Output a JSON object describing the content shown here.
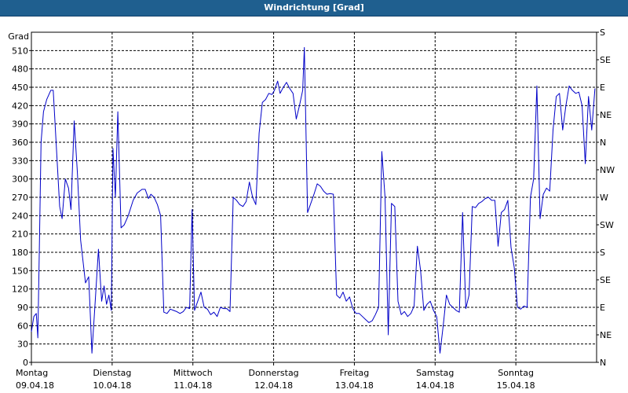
{
  "window": {
    "title": "Windrichtung [Grad]"
  },
  "chart_data": {
    "type": "line",
    "title": "Windrichtung [Grad]",
    "ylabel": "Grad",
    "ylim": [
      0,
      540
    ],
    "yticks": [
      0,
      30,
      60,
      90,
      120,
      150,
      180,
      210,
      240,
      270,
      300,
      330,
      360,
      390,
      420,
      450,
      480,
      510
    ],
    "right_ticks": [
      {
        "value": 0,
        "label": "N"
      },
      {
        "value": 45,
        "label": "NE"
      },
      {
        "value": 90,
        "label": "E"
      },
      {
        "value": 135,
        "label": "SE"
      },
      {
        "value": 180,
        "label": "S"
      },
      {
        "value": 225,
        "label": "SW"
      },
      {
        "value": 270,
        "label": "W"
      },
      {
        "value": 315,
        "label": "NW"
      },
      {
        "value": 360,
        "label": "N"
      },
      {
        "value": 405,
        "label": "NE"
      },
      {
        "value": 450,
        "label": "E"
      },
      {
        "value": 495,
        "label": "SE"
      },
      {
        "value": 540,
        "label": "S"
      }
    ],
    "xlim": [
      0,
      7
    ],
    "x_unit": "days since 09.04.18 00:00",
    "days": [
      {
        "weekday": "Montag",
        "date": "09.04.18"
      },
      {
        "weekday": "Dienstag",
        "date": "10.04.18"
      },
      {
        "weekday": "Mittwoch",
        "date": "11.04.18"
      },
      {
        "weekday": "Donnerstag",
        "date": "12.04.18"
      },
      {
        "weekday": "Freitag",
        "date": "13.04.18"
      },
      {
        "weekday": "Samstag",
        "date": "14.04.18"
      },
      {
        "weekday": "Sonntag",
        "date": "15.04.18"
      }
    ],
    "grid": true,
    "line_color": "#0000c8",
    "series": [
      {
        "points": [
          [
            0.0,
            50
          ],
          [
            0.03,
            75
          ],
          [
            0.06,
            80
          ],
          [
            0.08,
            40
          ],
          [
            0.1,
            200
          ],
          [
            0.12,
            360
          ],
          [
            0.15,
            410
          ],
          [
            0.19,
            430
          ],
          [
            0.24,
            445
          ],
          [
            0.27,
            445
          ],
          [
            0.31,
            350
          ],
          [
            0.35,
            255
          ],
          [
            0.38,
            235
          ],
          [
            0.42,
            300
          ],
          [
            0.46,
            285
          ],
          [
            0.49,
            250
          ],
          [
            0.53,
            395
          ],
          [
            0.57,
            310
          ],
          [
            0.61,
            200
          ],
          [
            0.67,
            130
          ],
          [
            0.71,
            140
          ],
          [
            0.75,
            15
          ],
          [
            0.79,
            100
          ],
          [
            0.83,
            185
          ],
          [
            0.87,
            100
          ],
          [
            0.9,
            125
          ],
          [
            0.93,
            95
          ],
          [
            0.96,
            110
          ],
          [
            0.99,
            85
          ],
          [
            1.01,
            350
          ],
          [
            1.04,
            270
          ],
          [
            1.07,
            410
          ],
          [
            1.11,
            220
          ],
          [
            1.15,
            225
          ],
          [
            1.2,
            240
          ],
          [
            1.26,
            265
          ],
          [
            1.31,
            277
          ],
          [
            1.37,
            283
          ],
          [
            1.41,
            283
          ],
          [
            1.45,
            268
          ],
          [
            1.48,
            275
          ],
          [
            1.52,
            270
          ],
          [
            1.56,
            258
          ],
          [
            1.6,
            240
          ],
          [
            1.64,
            82
          ],
          [
            1.68,
            80
          ],
          [
            1.72,
            87
          ],
          [
            1.76,
            85
          ],
          [
            1.8,
            83
          ],
          [
            1.84,
            80
          ],
          [
            1.88,
            83
          ],
          [
            1.92,
            90
          ],
          [
            1.96,
            88
          ],
          [
            1.99,
            250
          ],
          [
            2.02,
            85
          ],
          [
            2.06,
            100
          ],
          [
            2.1,
            115
          ],
          [
            2.14,
            90
          ],
          [
            2.18,
            87
          ],
          [
            2.22,
            78
          ],
          [
            2.26,
            82
          ],
          [
            2.3,
            75
          ],
          [
            2.34,
            90
          ],
          [
            2.38,
            88
          ],
          [
            2.42,
            88
          ],
          [
            2.46,
            83
          ],
          [
            2.5,
            270
          ],
          [
            2.54,
            265
          ],
          [
            2.58,
            258
          ],
          [
            2.62,
            255
          ],
          [
            2.66,
            263
          ],
          [
            2.7,
            295
          ],
          [
            2.74,
            270
          ],
          [
            2.78,
            258
          ],
          [
            2.82,
            375
          ],
          [
            2.86,
            425
          ],
          [
            2.9,
            430
          ],
          [
            2.94,
            440
          ],
          [
            2.98,
            438
          ],
          [
            3.01,
            445
          ],
          [
            3.05,
            460
          ],
          [
            3.08,
            440
          ],
          [
            3.12,
            450
          ],
          [
            3.16,
            458
          ],
          [
            3.2,
            448
          ],
          [
            3.24,
            440
          ],
          [
            3.28,
            398
          ],
          [
            3.32,
            420
          ],
          [
            3.36,
            445
          ],
          [
            3.38,
            515
          ],
          [
            3.42,
            245
          ],
          [
            3.46,
            260
          ],
          [
            3.5,
            275
          ],
          [
            3.54,
            292
          ],
          [
            3.58,
            288
          ],
          [
            3.62,
            280
          ],
          [
            3.66,
            275
          ],
          [
            3.7,
            276
          ],
          [
            3.74,
            275
          ],
          [
            3.78,
            110
          ],
          [
            3.82,
            105
          ],
          [
            3.86,
            115
          ],
          [
            3.9,
            100
          ],
          [
            3.94,
            107
          ],
          [
            3.98,
            88
          ],
          [
            4.02,
            80
          ],
          [
            4.06,
            80
          ],
          [
            4.1,
            75
          ],
          [
            4.14,
            70
          ],
          [
            4.18,
            65
          ],
          [
            4.22,
            68
          ],
          [
            4.26,
            78
          ],
          [
            4.3,
            90
          ],
          [
            4.34,
            345
          ],
          [
            4.38,
            270
          ],
          [
            4.42,
            45
          ],
          [
            4.46,
            260
          ],
          [
            4.5,
            255
          ],
          [
            4.54,
            100
          ],
          [
            4.58,
            78
          ],
          [
            4.62,
            83
          ],
          [
            4.66,
            75
          ],
          [
            4.7,
            80
          ],
          [
            4.74,
            92
          ],
          [
            4.78,
            190
          ],
          [
            4.82,
            150
          ],
          [
            4.86,
            85
          ],
          [
            4.9,
            95
          ],
          [
            4.94,
            100
          ],
          [
            4.98,
            85
          ],
          [
            5.02,
            75
          ],
          [
            5.06,
            15
          ],
          [
            5.1,
            60
          ],
          [
            5.14,
            110
          ],
          [
            5.18,
            95
          ],
          [
            5.22,
            90
          ],
          [
            5.26,
            85
          ],
          [
            5.3,
            82
          ],
          [
            5.34,
            245
          ],
          [
            5.38,
            88
          ],
          [
            5.42,
            110
          ],
          [
            5.46,
            255
          ],
          [
            5.5,
            253
          ],
          [
            5.54,
            260
          ],
          [
            5.58,
            263
          ],
          [
            5.62,
            268
          ],
          [
            5.66,
            270
          ],
          [
            5.7,
            265
          ],
          [
            5.74,
            265
          ],
          [
            5.78,
            190
          ],
          [
            5.82,
            245
          ],
          [
            5.86,
            250
          ],
          [
            5.9,
            265
          ],
          [
            5.94,
            188
          ],
          [
            5.98,
            155
          ],
          [
            6.02,
            90
          ],
          [
            6.06,
            87
          ],
          [
            6.1,
            92
          ],
          [
            6.14,
            90
          ],
          [
            6.18,
            270
          ],
          [
            6.22,
            300
          ],
          [
            6.26,
            452
          ],
          [
            6.3,
            235
          ],
          [
            6.34,
            275
          ],
          [
            6.38,
            285
          ],
          [
            6.42,
            280
          ],
          [
            6.46,
            380
          ],
          [
            6.5,
            435
          ],
          [
            6.54,
            440
          ],
          [
            6.58,
            380
          ],
          [
            6.62,
            420
          ],
          [
            6.66,
            452
          ],
          [
            6.7,
            445
          ],
          [
            6.74,
            440
          ],
          [
            6.78,
            442
          ],
          [
            6.82,
            420
          ],
          [
            6.86,
            325
          ],
          [
            6.9,
            435
          ],
          [
            6.94,
            380
          ],
          [
            6.98,
            448
          ]
        ]
      }
    ]
  }
}
